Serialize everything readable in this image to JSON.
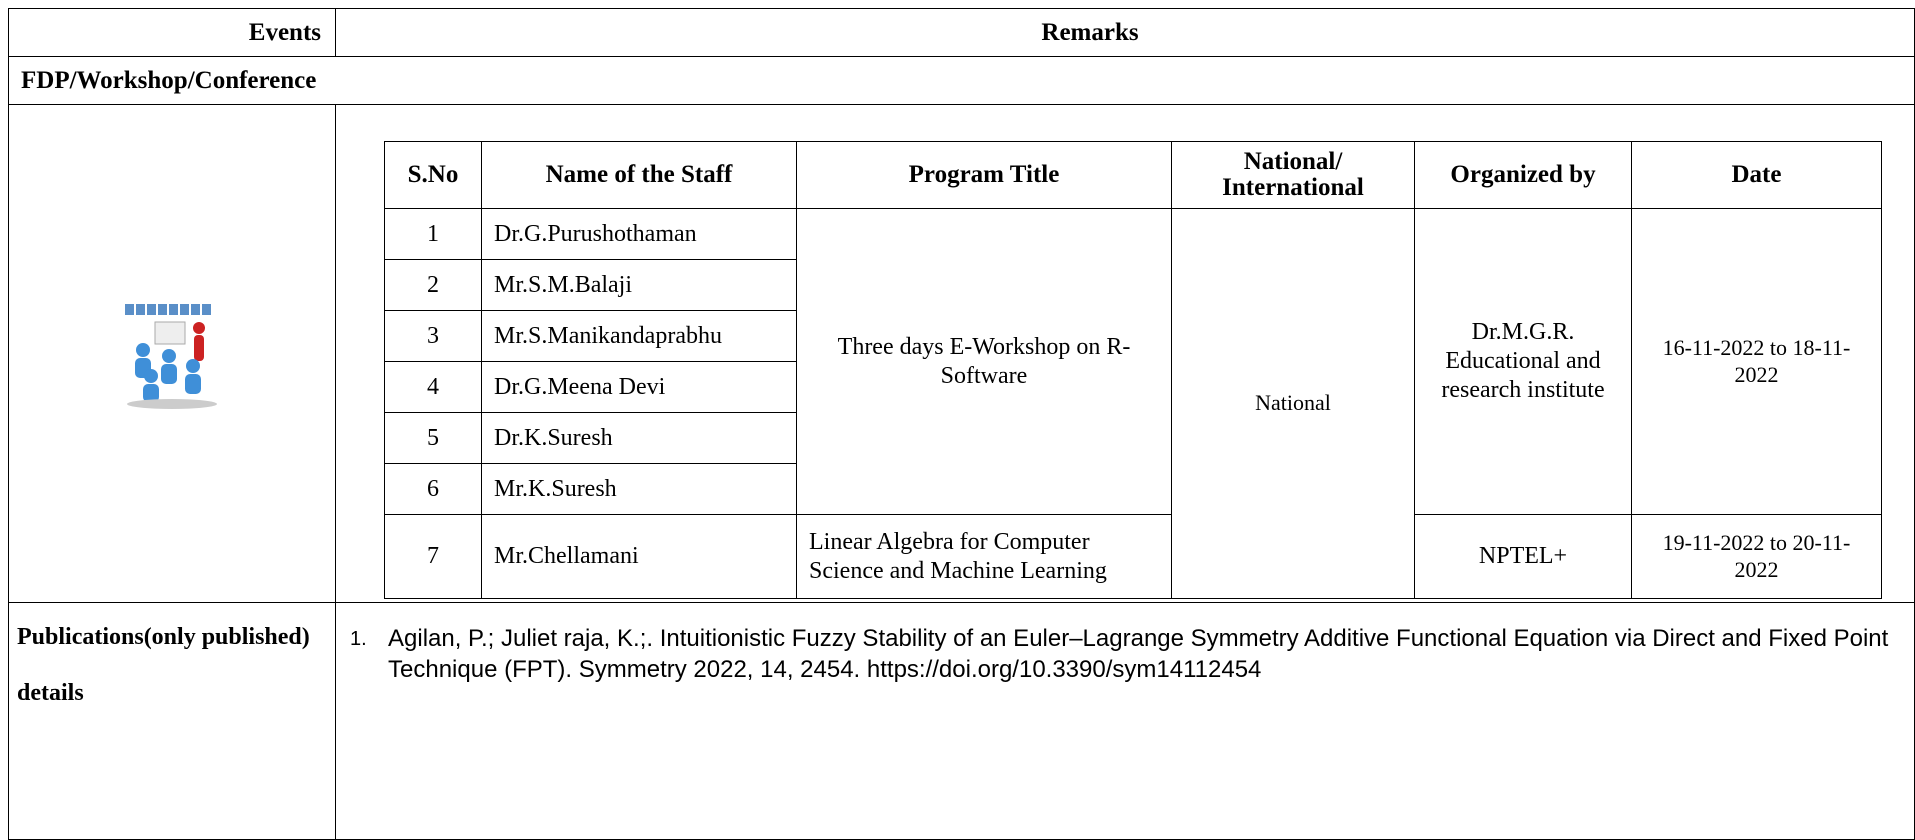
{
  "header": {
    "events": "Events",
    "remarks": "Remarks"
  },
  "section": "FDP/Workshop/Conference",
  "table": {
    "columns": [
      "S.No",
      "Name of the Staff",
      "Program Title",
      "National/ International",
      "Organized by",
      "Date"
    ],
    "scope": "National",
    "groups": [
      {
        "program": "Three days E-Workshop on R-Software",
        "organized_by": "Dr.M.G.R. Educational and research institute",
        "date": "16-11-2022 to 18-11-2022",
        "staff": [
          {
            "sno": "1",
            "name": "Dr.G.Purushothaman"
          },
          {
            "sno": "2",
            "name": "Mr.S.M.Balaji"
          },
          {
            "sno": "3",
            "name": "Mr.S.Manikandaprabhu"
          },
          {
            "sno": "4",
            "name": "Dr.G.Meena Devi"
          },
          {
            "sno": "5",
            "name": "Dr.K.Suresh"
          },
          {
            "sno": "6",
            "name": "Mr.K.Suresh"
          }
        ]
      },
      {
        "program": "Linear Algebra for Computer Science and Machine Learning",
        "organized_by": "NPTEL+",
        "date": "19-11-2022 to 20-11-2022",
        "staff": [
          {
            "sno": "7",
            "name": "Mr.Chellamani"
          }
        ]
      }
    ]
  },
  "publications": {
    "label": "Publications(only published) details",
    "items": [
      {
        "number": "1.",
        "text": "Agilan, P.; Juliet raja, K.;. Intuitionistic Fuzzy Stability of an Euler–Lagrange Symmetry Additive Functional Equation via Direct and Fixed Point Technique (FPT). Symmetry 2022, 14, 2454. https://doi.org/10.3390/sym14112454"
      }
    ]
  }
}
